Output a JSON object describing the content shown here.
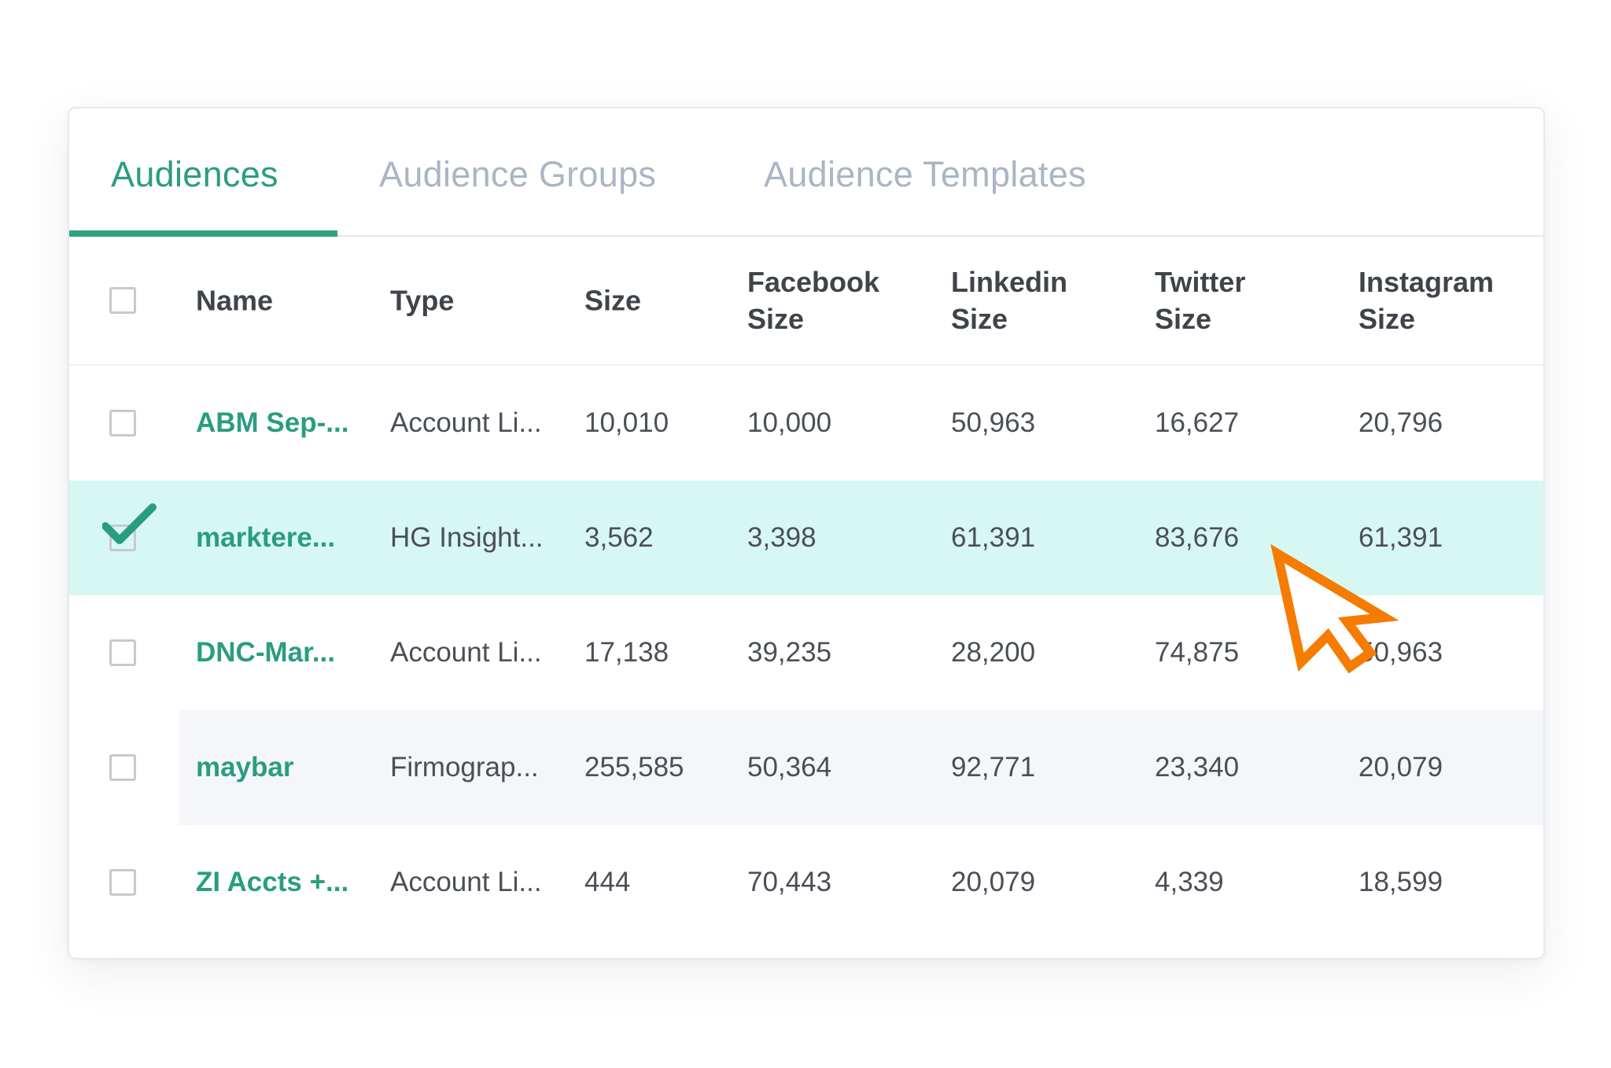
{
  "tabs": [
    {
      "label": "Audiences",
      "active": true
    },
    {
      "label": "Audience Groups",
      "active": false
    },
    {
      "label": "Audience Templates",
      "active": false
    }
  ],
  "table": {
    "headers": {
      "name": "Name",
      "type": "Type",
      "size": "Size",
      "facebook": "Facebook\nSize",
      "linkedin": "Linkedin\nSize",
      "twitter": "Twitter\nSize",
      "instagram": "Instagram\nSize"
    },
    "rows": [
      {
        "name": "ABM Sep-...",
        "type": "Account Li...",
        "size": "10,010",
        "facebook": "10,000",
        "linkedin": "50,963",
        "twitter": "16,627",
        "instagram": "20,796",
        "checked": false
      },
      {
        "name": "marktere...",
        "type": "HG Insight...",
        "size": "3,562",
        "facebook": "3,398",
        "linkedin": "61,391",
        "twitter": "83,676",
        "instagram": "61,391",
        "checked": true
      },
      {
        "name": "DNC-Mar...",
        "type": "Account Li...",
        "size": "17,138",
        "facebook": "39,235",
        "linkedin": "28,200",
        "twitter": "74,875",
        "instagram": "50,963",
        "checked": false
      },
      {
        "name": "maybar",
        "type": "Firmograp...",
        "size": "255,585",
        "facebook": "50,364",
        "linkedin": "92,771",
        "twitter": "23,340",
        "instagram": "20,079",
        "checked": false
      },
      {
        "name": "ZI Accts +...",
        "type": "Account Li...",
        "size": "444",
        "facebook": "70,443",
        "linkedin": "20,079",
        "twitter": "4,339",
        "instagram": "18,599",
        "checked": false
      }
    ]
  },
  "colors": {
    "accent": "#2a9d80",
    "tab_inactive": "#aab5c6",
    "selected_row": "#d7f8f2",
    "striped_row": "#f5f6f9",
    "cursor": "#f57c00"
  },
  "icons": {
    "checkmark": "checkmark-icon",
    "cursor": "mouse-pointer-icon"
  }
}
